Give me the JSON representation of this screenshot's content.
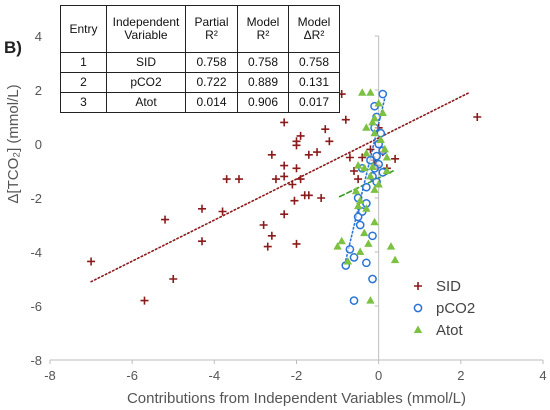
{
  "panel_label": "B)",
  "table": {
    "headers": [
      [
        "Entry"
      ],
      [
        "Independent",
        "Variable"
      ],
      [
        "Partial",
        "R²"
      ],
      [
        "Model",
        "R²"
      ],
      [
        "Model",
        "ΔR²"
      ]
    ],
    "rows": [
      [
        "1",
        "SID",
        "0.758",
        "0.758",
        "0.758"
      ],
      [
        "2",
        "pCO2",
        "0.722",
        "0.889",
        "0.131"
      ],
      [
        "3",
        "Atot",
        "0.014",
        "0.906",
        "0.017"
      ]
    ]
  },
  "chart_data": {
    "type": "scatter",
    "xlabel": "Contributions from Independent Variables (mmol/L)",
    "ylabel": "Δ[TCO₂] (mmol/L)",
    "xlim": [
      -8,
      4
    ],
    "ylim": [
      -8,
      4
    ],
    "xticks": [
      -8,
      -6,
      -4,
      -2,
      0,
      2,
      4
    ],
    "yticks": [
      -8,
      -6,
      -4,
      -2,
      0,
      2,
      4
    ],
    "grid": false,
    "legend_position": "bottom-right",
    "series": [
      {
        "name": "SID",
        "marker": "plus",
        "color": "#8b1a1a",
        "points": [
          [
            -7.0,
            -4.35
          ],
          [
            -5.7,
            -5.8
          ],
          [
            -5.2,
            -2.8
          ],
          [
            -5.0,
            -5.0
          ],
          [
            -4.3,
            -2.4
          ],
          [
            -4.3,
            -3.6
          ],
          [
            -3.8,
            -2.5
          ],
          [
            -3.7,
            -1.3
          ],
          [
            -3.4,
            -1.3
          ],
          [
            -2.8,
            -3.0
          ],
          [
            -2.7,
            -3.8
          ],
          [
            -2.6,
            -3.4
          ],
          [
            -2.6,
            -0.4
          ],
          [
            -2.5,
            -1.3
          ],
          [
            -2.3,
            0.8
          ],
          [
            -2.3,
            -1.2
          ],
          [
            -2.3,
            -2.6
          ],
          [
            -2.3,
            -0.8
          ],
          [
            -2.1,
            -1.5
          ],
          [
            -2.05,
            -2.1
          ],
          [
            -2.0,
            0.1
          ],
          [
            -2.0,
            -0.9
          ],
          [
            -2.0,
            -3.7
          ],
          [
            -2.0,
            -0.05
          ],
          [
            -1.9,
            0.3
          ],
          [
            -1.9,
            -1.3
          ],
          [
            -1.8,
            -1.9
          ],
          [
            -1.7,
            -0.4
          ],
          [
            -1.7,
            -1.9
          ],
          [
            -1.5,
            -0.3
          ],
          [
            -1.4,
            -2.0
          ],
          [
            -1.3,
            0.55
          ],
          [
            -1.2,
            0.1
          ],
          [
            -1.15,
            1.35
          ],
          [
            -0.9,
            1.85
          ],
          [
            -0.8,
            0.9
          ],
          [
            -0.7,
            -0.5
          ],
          [
            -0.6,
            -1.0
          ],
          [
            -0.5,
            -1.3
          ],
          [
            -0.4,
            -0.5
          ],
          [
            -0.2,
            -0.2
          ],
          [
            -0.1,
            -0.6
          ],
          [
            -0.05,
            -0.8
          ],
          [
            0.0,
            0.6
          ],
          [
            0.1,
            -0.3
          ],
          [
            0.2,
            -0.9
          ],
          [
            0.4,
            -0.55
          ],
          [
            2.4,
            1.0
          ]
        ]
      },
      {
        "name": "pCO2",
        "marker": "circle",
        "color": "#2a74d6",
        "points": [
          [
            0.1,
            1.85
          ],
          [
            -0.1,
            1.4
          ],
          [
            -0.05,
            1.0
          ],
          [
            -0.1,
            0.6
          ],
          [
            0.05,
            0.4
          ],
          [
            0.0,
            0.0
          ],
          [
            0.1,
            -0.25
          ],
          [
            -0.05,
            -0.45
          ],
          [
            -0.2,
            -0.6
          ],
          [
            0.0,
            -0.75
          ],
          [
            -0.1,
            -0.9
          ],
          [
            0.1,
            -1.05
          ],
          [
            -0.15,
            -1.2
          ],
          [
            -0.05,
            -1.4
          ],
          [
            -0.4,
            -0.9
          ],
          [
            -0.3,
            -1.6
          ],
          [
            -0.5,
            -2.0
          ],
          [
            -0.3,
            -2.2
          ],
          [
            -0.4,
            -2.5
          ],
          [
            -0.5,
            -2.7
          ],
          [
            -0.45,
            -3.0
          ],
          [
            -0.7,
            -3.9
          ],
          [
            -0.15,
            -3.4
          ],
          [
            -0.8,
            -4.5
          ],
          [
            -0.3,
            -4.4
          ],
          [
            -0.6,
            -4.2
          ],
          [
            -0.15,
            -5.0
          ],
          [
            -0.6,
            -5.8
          ]
        ]
      },
      {
        "name": "Atot",
        "marker": "triangle",
        "color": "#7cc142",
        "points": [
          [
            -0.2,
            1.9
          ],
          [
            -0.4,
            1.9
          ],
          [
            0.0,
            1.5
          ],
          [
            0.1,
            1.15
          ],
          [
            -0.1,
            0.95
          ],
          [
            -0.15,
            0.8
          ],
          [
            -0.3,
            0.6
          ],
          [
            -0.1,
            0.4
          ],
          [
            0.05,
            0.15
          ],
          [
            0.15,
            -0.2
          ],
          [
            -0.3,
            -0.35
          ],
          [
            0.2,
            -0.5
          ],
          [
            -0.5,
            -0.8
          ],
          [
            -0.35,
            -0.9
          ],
          [
            -0.15,
            -0.85
          ],
          [
            0.2,
            -1.0
          ],
          [
            -0.2,
            -1.2
          ],
          [
            0.0,
            -1.5
          ],
          [
            -0.1,
            -1.7
          ],
          [
            -0.55,
            -1.75
          ],
          [
            -0.45,
            -2.1
          ],
          [
            -0.3,
            -2.4
          ],
          [
            -0.5,
            -2.3
          ],
          [
            -0.1,
            -2.9
          ],
          [
            -0.35,
            -3.3
          ],
          [
            -0.25,
            -3.7
          ],
          [
            -0.45,
            -4.0
          ],
          [
            -0.75,
            -4.35
          ],
          [
            -0.9,
            -3.6
          ],
          [
            0.3,
            -3.8
          ],
          [
            0.4,
            -4.3
          ],
          [
            -0.2,
            -5.8
          ],
          [
            -1.0,
            -3.8
          ]
        ]
      }
    ],
    "trendlines": [
      {
        "series": "SID",
        "style": "dotted",
        "color": "#8b1a1a",
        "x": [
          -7.0,
          2.2
        ],
        "y": [
          -5.1,
          1.9
        ]
      },
      {
        "series": "pCO2",
        "style": "dotted",
        "color": "#2a74d6",
        "x": [
          -0.8,
          0.15
        ],
        "y": [
          -4.3,
          1.7
        ]
      },
      {
        "series": "Atot",
        "style": "dashed",
        "color": "#3a9a28",
        "x": [
          -0.95,
          0.35
        ],
        "y": [
          -1.95,
          -1.0
        ]
      }
    ]
  }
}
